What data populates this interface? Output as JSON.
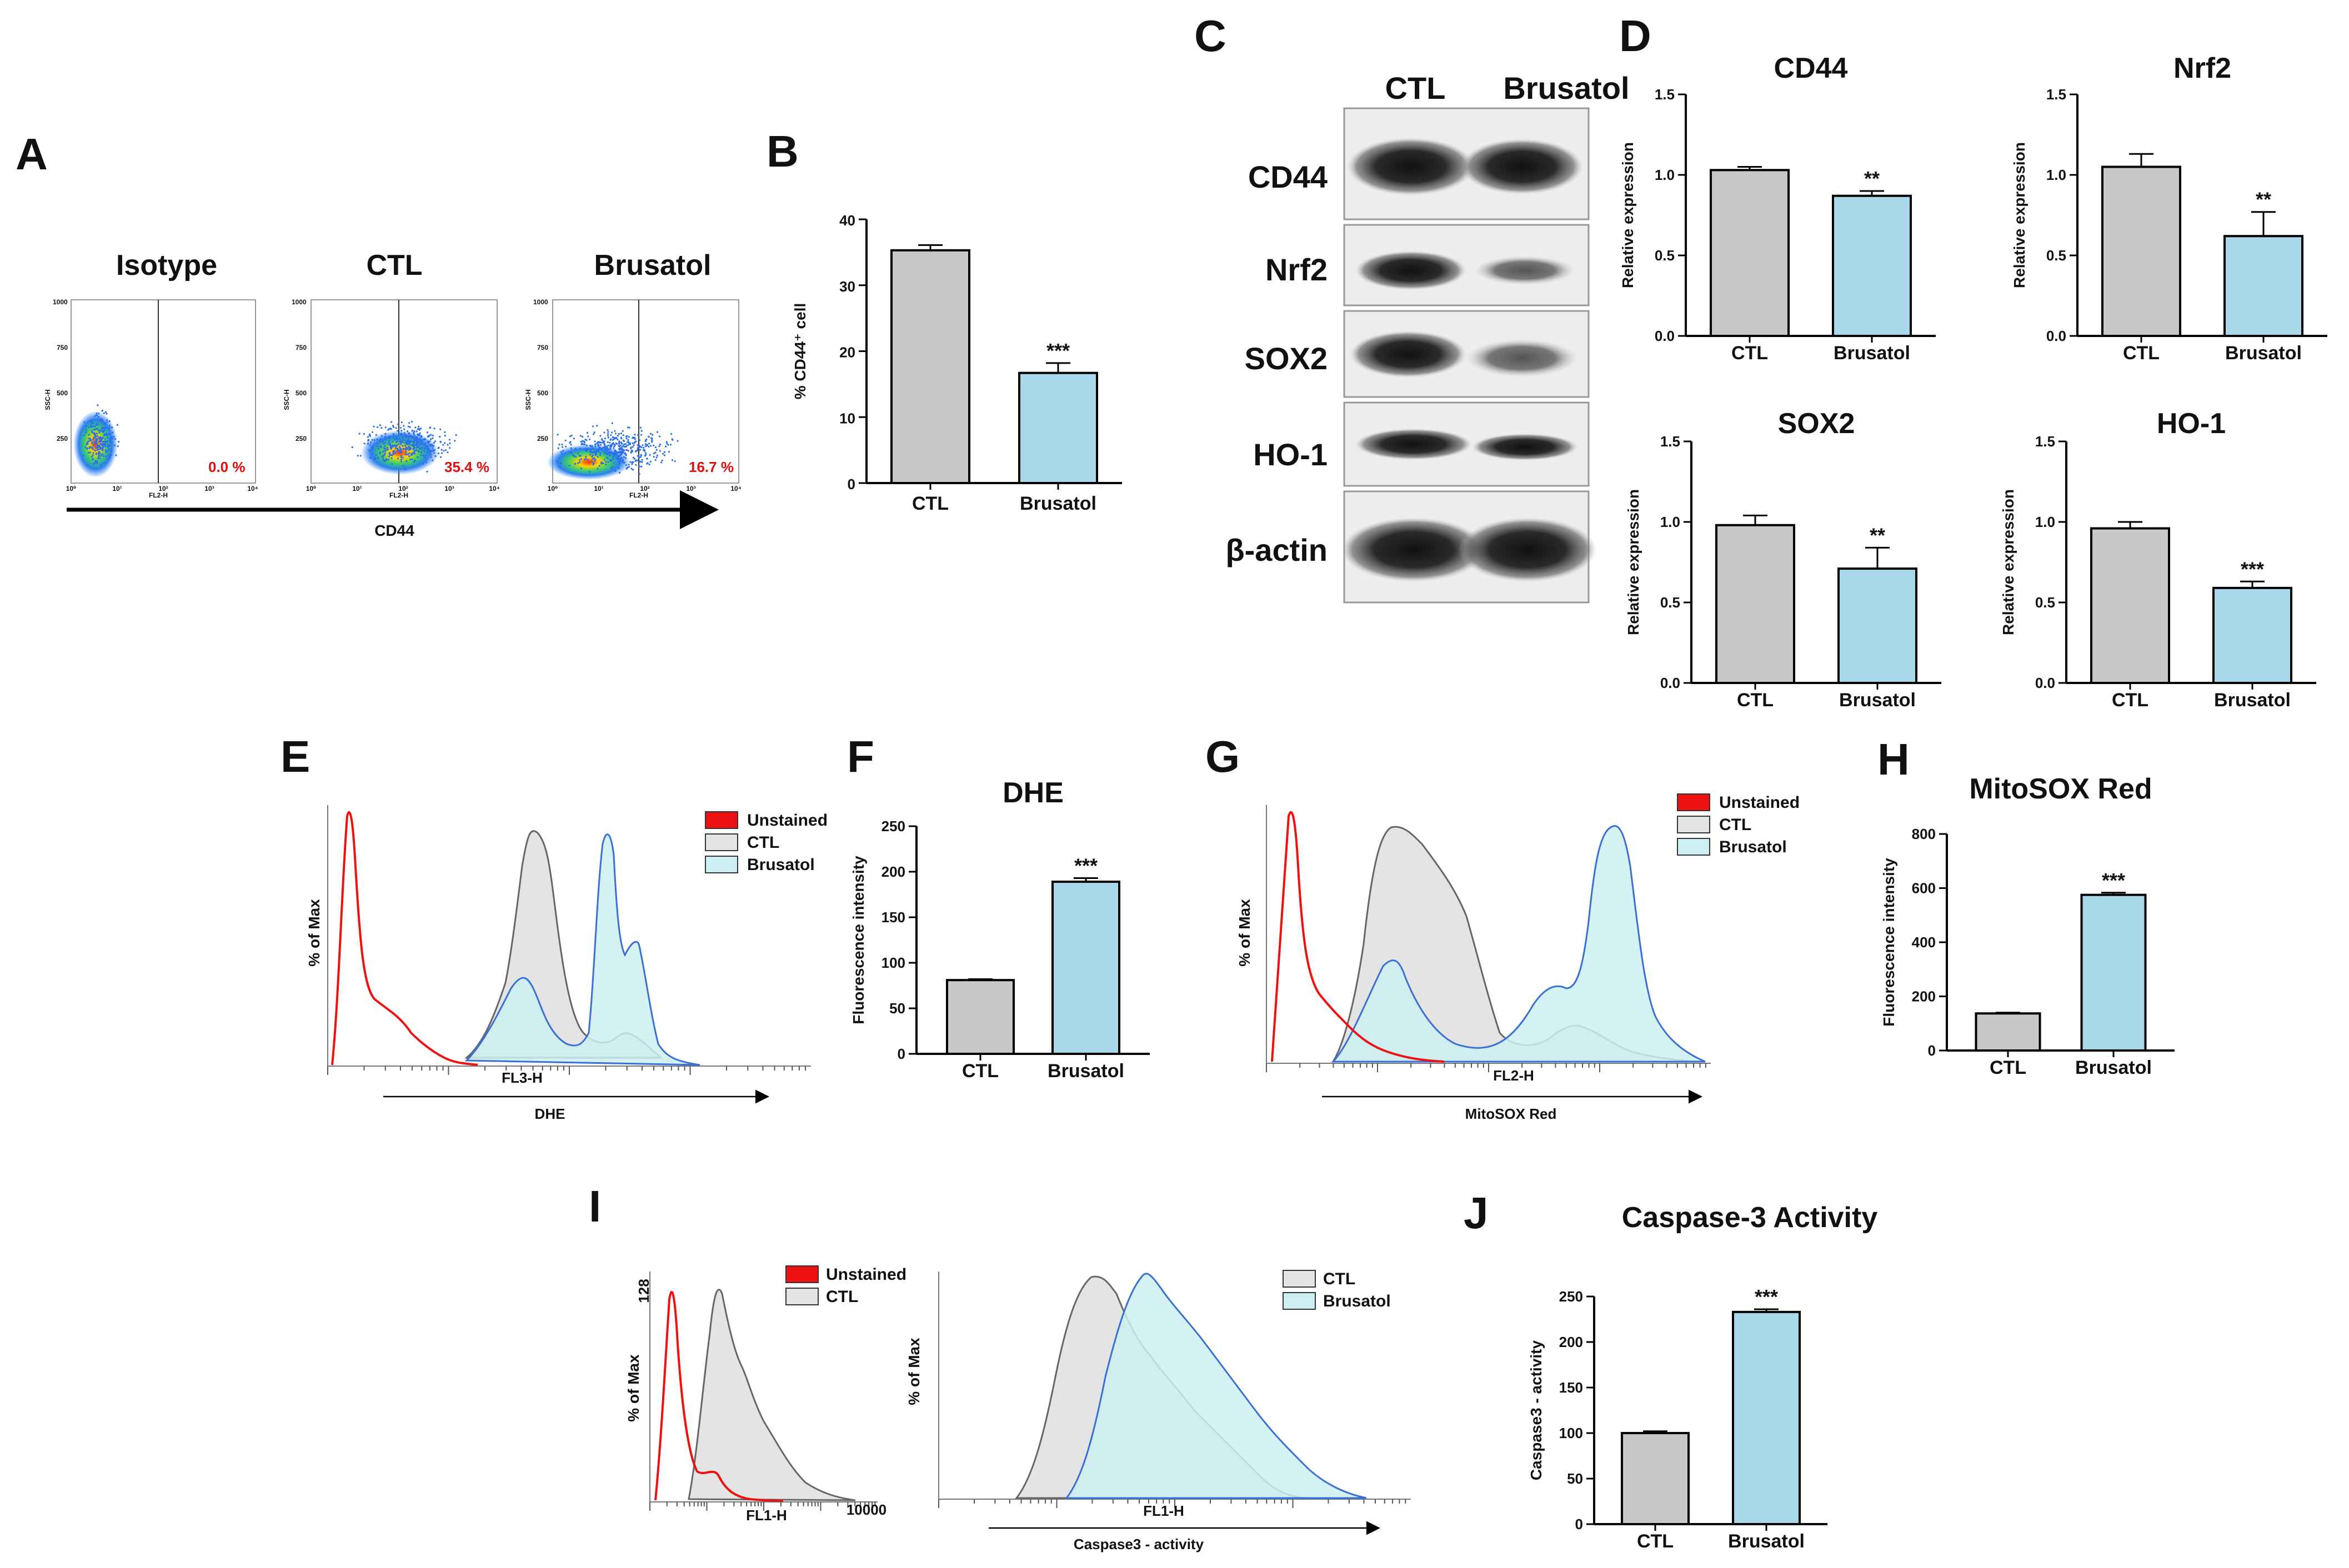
{
  "colors": {
    "ctl_bar": "#c8c8c8",
    "brus_bar": "#a8d8ea",
    "unstained": "#ee1111",
    "ctl_fill": "#e4e4e4",
    "brus_fill": "#cdeff1",
    "brus_line": "#3a6fd8"
  },
  "panels": {
    "A": {
      "label": "A",
      "axis_label": "CD44",
      "plots": [
        {
          "title": "Isotype",
          "pct": "0.0 %",
          "y_ticks": [
            "1000",
            "750",
            "500",
            "250"
          ],
          "y_axis": "SSC-H",
          "x_axis": "FL2-H"
        },
        {
          "title": "CTL",
          "pct": "35.4 %",
          "y_ticks": [
            "1000",
            "750",
            "500",
            "250"
          ],
          "y_axis": "SSC-H",
          "x_axis": "FL2-H"
        },
        {
          "title": "Brusatol",
          "pct": "16.7 %",
          "y_ticks": [
            "1000",
            "750",
            "500",
            "250"
          ],
          "y_axis": "SSC-H",
          "x_axis": "FL2-H"
        }
      ],
      "x_ticks": [
        "10⁰",
        "10¹",
        "10²",
        "10³",
        "10⁴"
      ]
    },
    "B": {
      "label": "B"
    },
    "C": {
      "label": "C",
      "lanes": [
        "CTL",
        "Brusatol"
      ],
      "rows": [
        "CD44",
        "Nrf2",
        "SOX2",
        "HO-1",
        "β-actin"
      ]
    },
    "D": {
      "label": "D"
    },
    "E": {
      "label": "E",
      "y_axis": "% of Max",
      "x_axis": "FL3-H",
      "arrow_label": "DHE",
      "legend": [
        "Unstained",
        "CTL",
        "Brusatol"
      ]
    },
    "F": {
      "label": "F"
    },
    "G": {
      "label": "G",
      "y_axis": "% of Max",
      "x_axis": "FL2-H",
      "arrow_label": "MitoSOX Red",
      "legend": [
        "Unstained",
        "CTL",
        "Brusatol"
      ]
    },
    "H": {
      "label": "H"
    },
    "I": {
      "label": "I",
      "left": {
        "y_axis": "% of Max",
        "y_tick": "128",
        "x_axis": "FL1-H",
        "x_tick_end": "10000",
        "legend": [
          "Unstained",
          "CTL"
        ]
      },
      "right": {
        "y_axis": "% of Max",
        "x_axis": "FL1-H",
        "arrow_label": "Caspase3 - activity",
        "legend": [
          "CTL",
          "Brusatol"
        ]
      }
    },
    "J": {
      "label": "J"
    }
  },
  "chart_data": [
    {
      "id": "B",
      "type": "bar",
      "title": "",
      "categories": [
        "CTL",
        "Brusatol"
      ],
      "values": [
        35.3,
        16.7
      ],
      "errors": [
        0.8,
        1.5
      ],
      "sig": [
        "",
        "***"
      ],
      "ylabel": "% CD44⁺ cell",
      "ylim": [
        0,
        40
      ],
      "yticks": [
        0,
        10,
        20,
        30,
        40
      ]
    },
    {
      "id": "D1",
      "type": "bar",
      "title": "CD44",
      "categories": [
        "CTL",
        "Brusatol"
      ],
      "values": [
        1.03,
        0.87
      ],
      "errors": [
        0.02,
        0.03
      ],
      "sig": [
        "",
        "**"
      ],
      "ylabel": "Relative expression",
      "ylim": [
        0,
        1.5
      ],
      "yticks": [
        0.0,
        0.5,
        1.0,
        1.5
      ]
    },
    {
      "id": "D2",
      "type": "bar",
      "title": "Nrf2",
      "categories": [
        "CTL",
        "Brusatol"
      ],
      "values": [
        1.05,
        0.62
      ],
      "errors": [
        0.08,
        0.15
      ],
      "sig": [
        "",
        "**"
      ],
      "ylabel": "Relative expression",
      "ylim": [
        0,
        1.5
      ],
      "yticks": [
        0.0,
        0.5,
        1.0,
        1.5
      ]
    },
    {
      "id": "D3",
      "type": "bar",
      "title": "SOX2",
      "categories": [
        "CTL",
        "Brusatol"
      ],
      "values": [
        0.98,
        0.71
      ],
      "errors": [
        0.06,
        0.13
      ],
      "sig": [
        "",
        "**"
      ],
      "ylabel": "Relative expression",
      "ylim": [
        0,
        1.5
      ],
      "yticks": [
        0.0,
        0.5,
        1.0,
        1.5
      ]
    },
    {
      "id": "D4",
      "type": "bar",
      "title": "HO-1",
      "categories": [
        "CTL",
        "Brusatol"
      ],
      "values": [
        0.96,
        0.59
      ],
      "errors": [
        0.04,
        0.04
      ],
      "sig": [
        "",
        "***"
      ],
      "ylabel": "Relative expression",
      "ylim": [
        0,
        1.5
      ],
      "yticks": [
        0.0,
        0.5,
        1.0,
        1.5
      ]
    },
    {
      "id": "F",
      "type": "bar",
      "title": "DHE",
      "categories": [
        "CTL",
        "Brusatol"
      ],
      "values": [
        81,
        189
      ],
      "errors": [
        1,
        4
      ],
      "sig": [
        "",
        "***"
      ],
      "ylabel": "Fluorescence intensity",
      "ylim": [
        0,
        250
      ],
      "yticks": [
        0,
        50,
        100,
        150,
        200,
        250
      ]
    },
    {
      "id": "H",
      "type": "bar",
      "title": "MitoSOX Red",
      "categories": [
        "CTL",
        "Brusatol"
      ],
      "values": [
        137,
        575
      ],
      "errors": [
        3,
        8
      ],
      "sig": [
        "",
        "***"
      ],
      "ylabel": "Fluorescence intensity",
      "ylim": [
        0,
        800
      ],
      "yticks": [
        0,
        200,
        400,
        600,
        800
      ]
    },
    {
      "id": "J",
      "type": "bar",
      "title": "Caspase-3 Activity",
      "categories": [
        "CTL",
        "Brusatol"
      ],
      "values": [
        100,
        233
      ],
      "errors": [
        2,
        3
      ],
      "sig": [
        "",
        "***"
      ],
      "ylabel": "Caspase3 - activity",
      "ylim": [
        0,
        250
      ],
      "yticks": [
        0,
        50,
        100,
        150,
        200,
        250
      ]
    }
  ]
}
